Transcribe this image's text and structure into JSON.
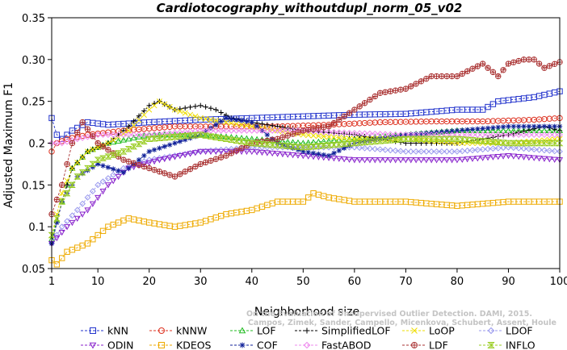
{
  "chart_data": {
    "type": "line",
    "title": "Cardiotocography_withoutdupl_norm_05_v02",
    "xlabel": "Neighborhood size",
    "ylabel": "Adjusted Maximum F1",
    "xlim": [
      1,
      100
    ],
    "ylim": [
      0.05,
      0.35
    ],
    "xticks": [
      1,
      10,
      20,
      30,
      40,
      50,
      60,
      70,
      80,
      90,
      100
    ],
    "yticks": [
      0.05,
      0.1,
      0.15,
      0.2,
      0.25,
      0.3,
      0.35
    ],
    "xtick_labels": [
      "1",
      "10",
      "20",
      "30",
      "40",
      "50",
      "60",
      "70",
      "80",
      "90",
      "100"
    ],
    "ytick_labels": [
      "0.05",
      "0.1",
      "0.15",
      "0.2",
      "0.25",
      "0.30",
      "0.35"
    ],
    "grid": false,
    "legend_position": "bottom",
    "watermark": [
      "Campos, Zimek, Sander, Campello, Micenkova, Schubert, Assent, Houle",
      "On the Evaluation of Unsupervised Outlier Detection. DAMI, 2015."
    ],
    "series": [
      {
        "name": "kNN",
        "color": "#2233cc",
        "marker": "square",
        "knots": [
          [
            1,
            0.23
          ],
          [
            2,
            0.21
          ],
          [
            3,
            0.205
          ],
          [
            5,
            0.215
          ],
          [
            8,
            0.225
          ],
          [
            12,
            0.222
          ],
          [
            20,
            0.225
          ],
          [
            30,
            0.228
          ],
          [
            40,
            0.23
          ],
          [
            50,
            0.232
          ],
          [
            60,
            0.234
          ],
          [
            70,
            0.235
          ],
          [
            80,
            0.24
          ],
          [
            85,
            0.24
          ],
          [
            88,
            0.25
          ],
          [
            95,
            0.255
          ],
          [
            100,
            0.262
          ]
        ]
      },
      {
        "name": "kNNW",
        "color": "#dd3322",
        "marker": "circle",
        "knots": [
          [
            1,
            0.19
          ],
          [
            2,
            0.2
          ],
          [
            4,
            0.205
          ],
          [
            8,
            0.21
          ],
          [
            15,
            0.215
          ],
          [
            25,
            0.22
          ],
          [
            35,
            0.22
          ],
          [
            45,
            0.22
          ],
          [
            55,
            0.222
          ],
          [
            65,
            0.225
          ],
          [
            75,
            0.226
          ],
          [
            85,
            0.226
          ],
          [
            95,
            0.228
          ],
          [
            100,
            0.23
          ]
        ]
      },
      {
        "name": "LOF",
        "color": "#22bb22",
        "marker": "triangle",
        "knots": [
          [
            1,
            0.085
          ],
          [
            3,
            0.13
          ],
          [
            5,
            0.17
          ],
          [
            8,
            0.19
          ],
          [
            12,
            0.2
          ],
          [
            20,
            0.21
          ],
          [
            30,
            0.21
          ],
          [
            40,
            0.205
          ],
          [
            50,
            0.2
          ],
          [
            60,
            0.205
          ],
          [
            70,
            0.21
          ],
          [
            80,
            0.215
          ],
          [
            90,
            0.215
          ],
          [
            100,
            0.215
          ]
        ]
      },
      {
        "name": "SimplifiedLOF",
        "color": "#000000",
        "marker": "plus",
        "knots": [
          [
            1,
            0.08
          ],
          [
            3,
            0.13
          ],
          [
            5,
            0.17
          ],
          [
            8,
            0.19
          ],
          [
            12,
            0.2
          ],
          [
            16,
            0.22
          ],
          [
            20,
            0.245
          ],
          [
            22,
            0.25
          ],
          [
            25,
            0.24
          ],
          [
            30,
            0.245
          ],
          [
            33,
            0.24
          ],
          [
            36,
            0.23
          ],
          [
            40,
            0.225
          ],
          [
            50,
            0.215
          ],
          [
            60,
            0.21
          ],
          [
            65,
            0.205
          ],
          [
            70,
            0.2
          ],
          [
            75,
            0.2
          ],
          [
            80,
            0.2
          ],
          [
            90,
            0.21
          ],
          [
            97,
            0.22
          ],
          [
            100,
            0.215
          ]
        ]
      },
      {
        "name": "LoOP",
        "color": "#eedd00",
        "marker": "x",
        "knots": [
          [
            1,
            0.09
          ],
          [
            3,
            0.14
          ],
          [
            5,
            0.17
          ],
          [
            8,
            0.19
          ],
          [
            12,
            0.2
          ],
          [
            16,
            0.215
          ],
          [
            20,
            0.24
          ],
          [
            22,
            0.25
          ],
          [
            25,
            0.24
          ],
          [
            30,
            0.23
          ],
          [
            40,
            0.22
          ],
          [
            50,
            0.21
          ],
          [
            60,
            0.205
          ],
          [
            70,
            0.205
          ],
          [
            80,
            0.2
          ],
          [
            90,
            0.2
          ],
          [
            100,
            0.205
          ]
        ]
      },
      {
        "name": "LDOF",
        "color": "#9999ee",
        "marker": "diamond",
        "knots": [
          [
            1,
            0.08
          ],
          [
            3,
            0.1
          ],
          [
            6,
            0.12
          ],
          [
            10,
            0.15
          ],
          [
            15,
            0.17
          ],
          [
            20,
            0.18
          ],
          [
            30,
            0.19
          ],
          [
            40,
            0.195
          ],
          [
            50,
            0.195
          ],
          [
            60,
            0.195
          ],
          [
            70,
            0.19
          ],
          [
            80,
            0.19
          ],
          [
            90,
            0.195
          ],
          [
            100,
            0.19
          ]
        ]
      },
      {
        "name": "ODIN",
        "color": "#8822cc",
        "marker": "triangle-down",
        "knots": [
          [
            1,
            0.08
          ],
          [
            4,
            0.1
          ],
          [
            8,
            0.12
          ],
          [
            12,
            0.15
          ],
          [
            16,
            0.17
          ],
          [
            22,
            0.18
          ],
          [
            30,
            0.19
          ],
          [
            40,
            0.19
          ],
          [
            50,
            0.185
          ],
          [
            60,
            0.18
          ],
          [
            70,
            0.18
          ],
          [
            80,
            0.18
          ],
          [
            90,
            0.185
          ],
          [
            100,
            0.18
          ]
        ]
      },
      {
        "name": "KDEOS",
        "color": "#eeaa00",
        "marker": "square",
        "knots": [
          [
            1,
            0.06
          ],
          [
            2,
            0.055
          ],
          [
            4,
            0.07
          ],
          [
            8,
            0.08
          ],
          [
            12,
            0.1
          ],
          [
            16,
            0.11
          ],
          [
            20,
            0.105
          ],
          [
            25,
            0.1
          ],
          [
            30,
            0.105
          ],
          [
            35,
            0.115
          ],
          [
            40,
            0.12
          ],
          [
            45,
            0.13
          ],
          [
            50,
            0.13
          ],
          [
            52,
            0.14
          ],
          [
            55,
            0.135
          ],
          [
            60,
            0.13
          ],
          [
            70,
            0.13
          ],
          [
            80,
            0.125
          ],
          [
            90,
            0.13
          ],
          [
            100,
            0.13
          ]
        ]
      },
      {
        "name": "COF",
        "color": "#112299",
        "marker": "star",
        "knots": [
          [
            1,
            0.08
          ],
          [
            3,
            0.13
          ],
          [
            6,
            0.16
          ],
          [
            10,
            0.175
          ],
          [
            15,
            0.165
          ],
          [
            20,
            0.19
          ],
          [
            30,
            0.21
          ],
          [
            35,
            0.23
          ],
          [
            40,
            0.225
          ],
          [
            45,
            0.2
          ],
          [
            50,
            0.19
          ],
          [
            55,
            0.185
          ],
          [
            60,
            0.2
          ],
          [
            65,
            0.205
          ],
          [
            70,
            0.21
          ],
          [
            80,
            0.215
          ],
          [
            90,
            0.22
          ],
          [
            100,
            0.22
          ]
        ]
      },
      {
        "name": "FastABOD",
        "color": "#ee88ee",
        "marker": "diamond",
        "knots": [
          [
            1,
            0.2
          ],
          [
            3,
            0.2
          ],
          [
            6,
            0.205
          ],
          [
            10,
            0.21
          ],
          [
            20,
            0.21
          ],
          [
            30,
            0.215
          ],
          [
            40,
            0.215
          ],
          [
            50,
            0.215
          ],
          [
            60,
            0.212
          ],
          [
            70,
            0.21
          ],
          [
            80,
            0.21
          ],
          [
            90,
            0.21
          ],
          [
            100,
            0.21
          ]
        ]
      },
      {
        "name": "LDF",
        "color": "#aa3333",
        "marker": "circle-plus",
        "knots": [
          [
            1,
            0.115
          ],
          [
            3,
            0.15
          ],
          [
            5,
            0.2
          ],
          [
            7,
            0.225
          ],
          [
            10,
            0.2
          ],
          [
            15,
            0.18
          ],
          [
            20,
            0.17
          ],
          [
            25,
            0.16
          ],
          [
            30,
            0.175
          ],
          [
            35,
            0.185
          ],
          [
            40,
            0.2
          ],
          [
            45,
            0.205
          ],
          [
            50,
            0.215
          ],
          [
            55,
            0.22
          ],
          [
            60,
            0.24
          ],
          [
            65,
            0.26
          ],
          [
            70,
            0.265
          ],
          [
            75,
            0.28
          ],
          [
            80,
            0.28
          ],
          [
            85,
            0.295
          ],
          [
            88,
            0.28
          ],
          [
            90,
            0.295
          ],
          [
            93,
            0.3
          ],
          [
            95,
            0.3
          ],
          [
            97,
            0.29
          ],
          [
            100,
            0.297
          ]
        ]
      },
      {
        "name": "INFLO",
        "color": "#99cc22",
        "marker": "hourglass",
        "knots": [
          [
            1,
            0.09
          ],
          [
            3,
            0.13
          ],
          [
            6,
            0.16
          ],
          [
            10,
            0.18
          ],
          [
            15,
            0.19
          ],
          [
            20,
            0.205
          ],
          [
            30,
            0.21
          ],
          [
            40,
            0.2
          ],
          [
            50,
            0.195
          ],
          [
            60,
            0.2
          ],
          [
            70,
            0.205
          ],
          [
            80,
            0.205
          ],
          [
            90,
            0.2
          ],
          [
            100,
            0.2
          ]
        ]
      }
    ]
  }
}
